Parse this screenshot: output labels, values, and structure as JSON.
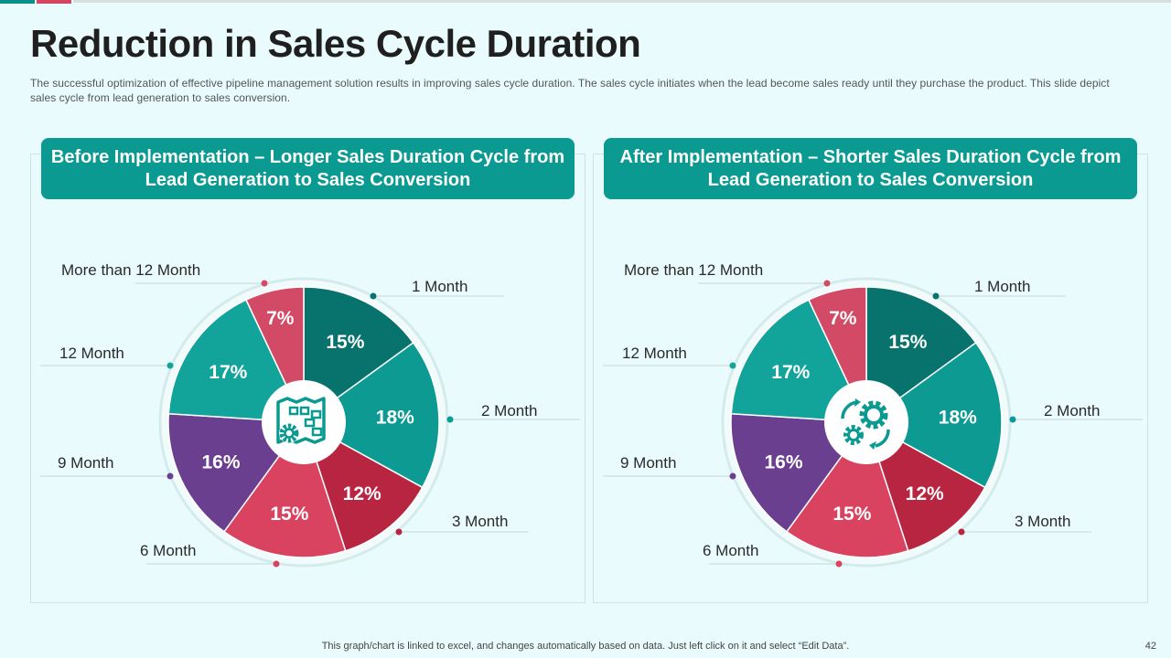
{
  "title": "Reduction in Sales Cycle Duration",
  "subtitle": "The successful optimization of effective pipeline management solution results in improving sales cycle duration. The sales cycle initiates when the lead become sales ready until they purchase the product. This slide depict sales cycle from lead generation to sales conversion.",
  "footer_note": "This graph/chart is linked to excel, and changes automatically based on data. Just left click on it and select “Edit Data”.",
  "page_number": "42",
  "colors": {
    "accent_teal": "#0b8f8a",
    "accent_red": "#d6455f",
    "header_bg": "#0a9a92"
  },
  "chart_data": [
    {
      "type": "pie",
      "title": "Before Implementation – Longer Sales Duration Cycle from Lead Generation to Sales Conversion",
      "center_icon": "blueprint-gear-icon",
      "slices": [
        {
          "label": "1 Month",
          "value": 15,
          "display": "15%",
          "color": "#08726d"
        },
        {
          "label": "2 Month",
          "value": 18,
          "display": "18%",
          "color": "#0c9a93"
        },
        {
          "label": "3 Month",
          "value": 12,
          "display": "12%",
          "color": "#b72541"
        },
        {
          "label": "6 Month",
          "value": 15,
          "display": "15%",
          "color": "#d9435f"
        },
        {
          "label": "9 Month",
          "value": 16,
          "display": "16%",
          "color": "#6a3f8f"
        },
        {
          "label": "12 Month",
          "value": 17,
          "display": "17%",
          "color": "#12a49b"
        },
        {
          "label": "More than 12 Month",
          "value": 7,
          "display": "7%",
          "color": "#d24a65"
        }
      ]
    },
    {
      "type": "pie",
      "title": "After Implementation – Shorter Sales Duration Cycle from Lead Generation to Sales Conversion",
      "center_icon": "gears-cycle-icon",
      "slices": [
        {
          "label": "1 Month",
          "value": 15,
          "display": "15%",
          "color": "#08726d"
        },
        {
          "label": "2 Month",
          "value": 18,
          "display": "18%",
          "color": "#0c9a93"
        },
        {
          "label": "3 Month",
          "value": 12,
          "display": "12%",
          "color": "#b72541"
        },
        {
          "label": "6 Month",
          "value": 15,
          "display": "15%",
          "color": "#d9435f"
        },
        {
          "label": "9 Month",
          "value": 16,
          "display": "16%",
          "color": "#6a3f8f"
        },
        {
          "label": "12 Month",
          "value": 17,
          "display": "17%",
          "color": "#12a49b"
        },
        {
          "label": "More than 12 Month",
          "value": 7,
          "display": "7%",
          "color": "#d24a65"
        }
      ]
    }
  ]
}
